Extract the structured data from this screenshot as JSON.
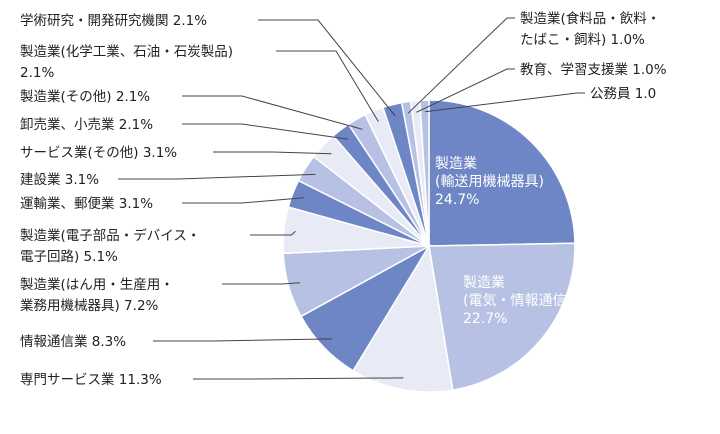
{
  "chart_data": {
    "type": "pie",
    "title": "",
    "start_angle_deg": 0,
    "direction": "clockwise",
    "slices": [
      {
        "lines": [
          "製造業",
          "(輸送用機械器具)",
          "24.7%"
        ],
        "value": 24.7,
        "color": "#6f86c6",
        "inside": true
      },
      {
        "lines": [
          "製造業",
          "(電気・情報通信機械器具)",
          "22.7%"
        ],
        "value": 22.7,
        "color": "#b6c1e3",
        "inside": true
      },
      {
        "lines": [
          "専門サービス業 11.3%"
        ],
        "value": 11.3,
        "color": "#e8ebf5",
        "inside": false
      },
      {
        "lines": [
          "情報通信業 8.3%"
        ],
        "value": 8.3,
        "color": "#6f86c6",
        "inside": false
      },
      {
        "lines": [
          "製造業(はん用・生産用・",
          "業務用機械器具) 7.2%"
        ],
        "value": 7.2,
        "color": "#b6c1e3",
        "inside": false
      },
      {
        "lines": [
          "製造業(電子部品・デバイス・",
          "電子回路) 5.1%"
        ],
        "value": 5.1,
        "color": "#e8ebf5",
        "inside": false
      },
      {
        "lines": [
          "運輸業、郵便業 3.1%"
        ],
        "value": 3.1,
        "color": "#6f86c6",
        "inside": false
      },
      {
        "lines": [
          "建設業 3.1%"
        ],
        "value": 3.1,
        "color": "#b6c1e3",
        "inside": false
      },
      {
        "lines": [
          "サービス業(その他) 3.1%"
        ],
        "value": 3.1,
        "color": "#e8ebf5",
        "inside": false
      },
      {
        "lines": [
          "卸売業、小売業 2.1%"
        ],
        "value": 2.1,
        "color": "#6f86c6",
        "inside": false
      },
      {
        "lines": [
          "製造業(その他) 2.1%"
        ],
        "value": 2.1,
        "color": "#b6c1e3",
        "inside": false
      },
      {
        "lines": [
          "製造業(化学工業、石油・石炭製品)",
          "2.1%"
        ],
        "value": 2.1,
        "color": "#e8ebf5",
        "inside": false
      },
      {
        "lines": [
          "学術研究・開発研究機関 2.1%"
        ],
        "value": 2.1,
        "color": "#6f86c6",
        "inside": false
      },
      {
        "lines": [
          "製造業(食料品・飲料・",
          "たばこ・飼料) 1.0%"
        ],
        "value": 1.0,
        "color": "#b6c1e3",
        "inside": false
      },
      {
        "lines": [
          "教育、学習支援業 1.0%"
        ],
        "value": 1.0,
        "color": "#e8ebf5",
        "inside": false
      },
      {
        "lines": [
          "公務員 1.0"
        ],
        "value": 1.0,
        "color": "#b6c1e3",
        "inside": false
      }
    ]
  }
}
